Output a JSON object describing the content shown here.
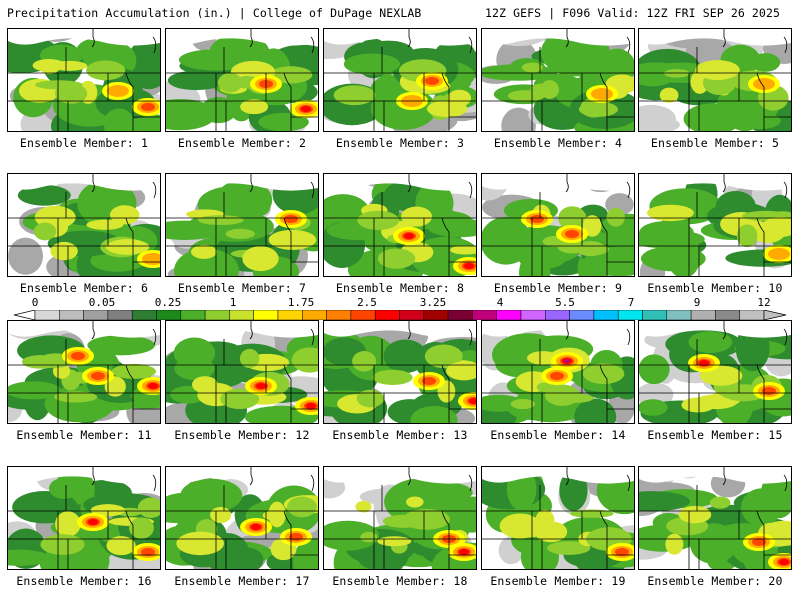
{
  "header": {
    "left": "Precipitation Accumulation (in.) | College of DuPage NEXLAB",
    "right": "12Z GEFS | F096 Valid: 12Z FRI SEP 26 2025"
  },
  "member_prefix": "Ensemble Member: ",
  "members": [
    "1",
    "2",
    "3",
    "4",
    "5",
    "6",
    "7",
    "8",
    "9",
    "10",
    "11",
    "12",
    "13",
    "14",
    "15",
    "16",
    "17",
    "18",
    "19",
    "20"
  ],
  "colorbar": {
    "labels": [
      "0",
      "0.05",
      "0.25",
      "1",
      "1.75",
      "2.5",
      "3.25",
      "4",
      "5.5",
      "7",
      "9",
      "12"
    ],
    "colors": [
      "#d8d8d8",
      "#bdbdbd",
      "#a0a0a0",
      "#808080",
      "#2e7d32",
      "#1b8a1b",
      "#4caf2a",
      "#8fce2f",
      "#c8e12c",
      "#ffff00",
      "#ffd400",
      "#ffaa00",
      "#ff7f00",
      "#ff4500",
      "#ff0000",
      "#d0001a",
      "#a00000",
      "#7a0033",
      "#c0007a",
      "#ff00ff",
      "#d066ff",
      "#9a66ff",
      "#6a8cff",
      "#00bfff",
      "#00e5ee",
      "#30c0b8",
      "#7fbfbf",
      "#b0b0b0",
      "#8a8a8a",
      "#c0c0c0"
    ]
  },
  "legend_colors": {
    "trace": "#d8d8d8",
    "light": "#808080",
    "moderate": "#2e8b2e",
    "heavy_yellow": "#ffff00",
    "heavy_orange": "#ffaa00",
    "heavy_red": "#ff0000",
    "extreme_magenta": "#c0007a"
  }
}
